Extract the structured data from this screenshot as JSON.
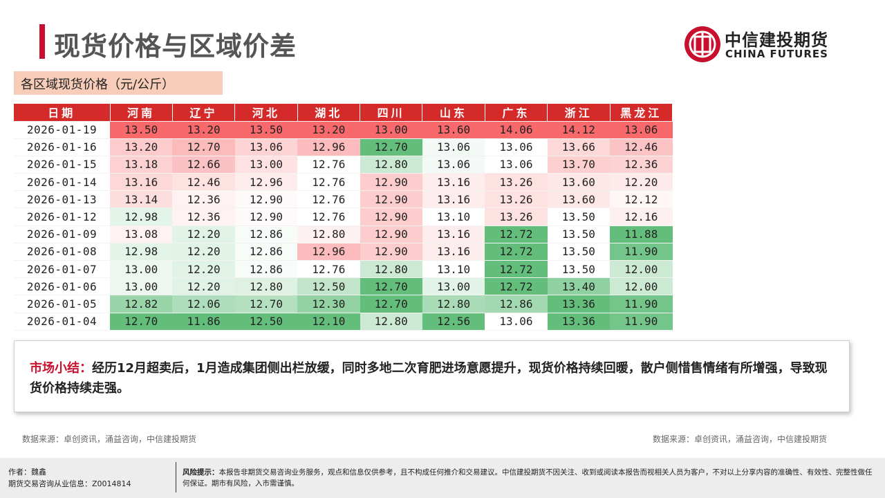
{
  "header": {
    "title": "现货价格与区域价差",
    "logo_cn": "中信建投期货",
    "logo_en": "CHINA FUTURES"
  },
  "subtitle": "各区域现货价格（元/公斤）",
  "table": {
    "headers": [
      "日期",
      "河南",
      "辽宁",
      "河北",
      "湖北",
      "四川",
      "山东",
      "广东",
      "浙江",
      "黑龙江"
    ],
    "rows": [
      [
        "2026-01-19",
        "13.50",
        "13.20",
        "13.50",
        "13.20",
        "13.00",
        "13.60",
        "14.06",
        "14.12",
        "13.06"
      ],
      [
        "2026-01-16",
        "13.20",
        "12.70",
        "13.06",
        "12.96",
        "12.70",
        "13.06",
        "13.06",
        "13.66",
        "12.46"
      ],
      [
        "2026-01-15",
        "13.18",
        "12.66",
        "13.00",
        "12.76",
        "12.80",
        "13.06",
        "13.06",
        "13.70",
        "12.36"
      ],
      [
        "2026-01-14",
        "13.16",
        "12.46",
        "12.96",
        "12.76",
        "12.90",
        "13.16",
        "13.26",
        "13.60",
        "12.20"
      ],
      [
        "2026-01-13",
        "13.14",
        "12.36",
        "12.90",
        "12.76",
        "12.90",
        "13.16",
        "13.26",
        "13.60",
        "12.12"
      ],
      [
        "2026-01-12",
        "12.98",
        "12.36",
        "12.90",
        "12.76",
        "12.90",
        "13.10",
        "13.26",
        "13.50",
        "12.16"
      ],
      [
        "2026-01-09",
        "13.08",
        "12.20",
        "12.86",
        "12.80",
        "12.90",
        "13.16",
        "12.72",
        "13.50",
        "11.88"
      ],
      [
        "2026-01-08",
        "12.98",
        "12.20",
        "12.86",
        "12.96",
        "12.90",
        "13.16",
        "12.72",
        "13.50",
        "11.90"
      ],
      [
        "2026-01-07",
        "13.00",
        "12.20",
        "12.86",
        "12.76",
        "12.80",
        "13.10",
        "12.72",
        "13.50",
        "12.00"
      ],
      [
        "2026-01-06",
        "13.00",
        "12.20",
        "12.80",
        "12.50",
        "12.70",
        "13.00",
        "12.72",
        "13.40",
        "12.00"
      ],
      [
        "2026-01-05",
        "12.82",
        "12.06",
        "12.70",
        "12.30",
        "12.70",
        "12.80",
        "12.86",
        "13.36",
        "11.90"
      ],
      [
        "2026-01-04",
        "12.70",
        "11.86",
        "12.50",
        "12.10",
        "12.80",
        "12.56",
        "13.06",
        "13.36",
        "11.90"
      ]
    ],
    "colors": {
      "high": "#f8696b",
      "mid": "#ffffff",
      "low": "#63be7b"
    }
  },
  "summary": {
    "label": "市场小结：",
    "text": "经历12月超卖后，1月造成集团侧出栏放缓，同时多地二次育肥进场意愿提升，现货价格持续回暖，散户侧惜售情绪有所增强，导致现货价格持续走强。"
  },
  "sources": {
    "left": "数据来源：卓创资讯，涌益咨询，中信建投期货",
    "right": "数据来源：卓创资讯，涌益咨询，中信建投期货"
  },
  "footer": {
    "author": "作者：魏鑫",
    "license": "期货交易咨询从业信息：Z0014814",
    "risk_label": "风险提示：",
    "risk_text": "本报告非期货交易咨询业务服务，观点和信息仅供参考，且不构成任何推介和交易建议。中信建投期货不因关注、收到或阅读本报告而视相关人员为客户，不对以上分享内容的准确性、有效性、完整性做任何保证。期市有风险，入市需谨慎。"
  }
}
